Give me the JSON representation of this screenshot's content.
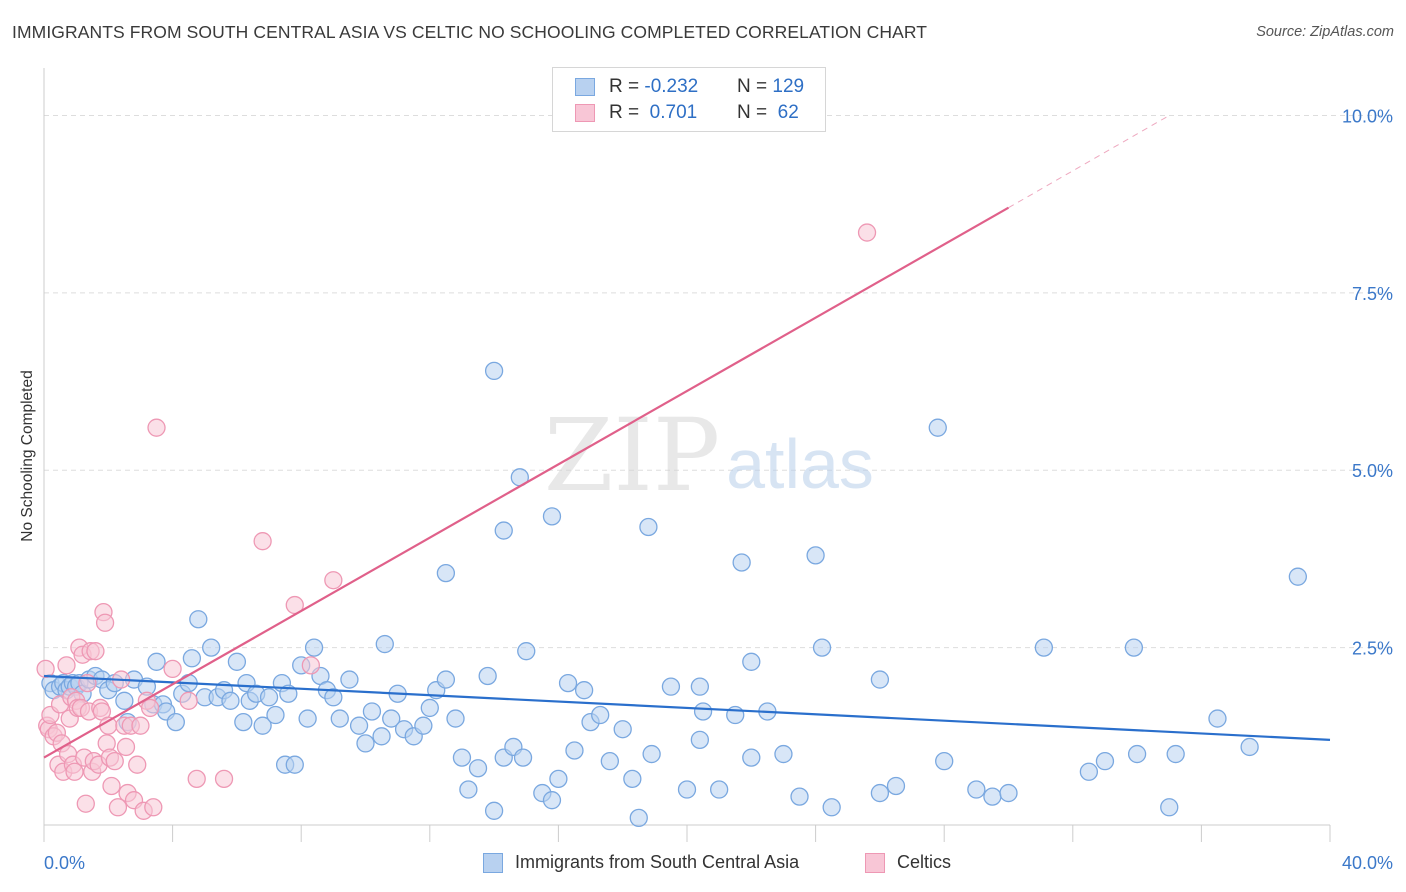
{
  "title": "IMMIGRANTS FROM SOUTH CENTRAL ASIA VS CELTIC NO SCHOOLING COMPLETED CORRELATION CHART",
  "source": "Source: ZipAtlas.com",
  "watermark": {
    "zip": "ZIP",
    "atlas": "atlas"
  },
  "colors": {
    "blue_fill": "#b8d1f0",
    "blue_stroke": "#7aa8e0",
    "blue_line": "#2a6fcc",
    "pink_fill": "#f8c6d6",
    "pink_stroke": "#ee98b4",
    "pink_line": "#e0608a",
    "axis_label": "#3b78c9",
    "grid": "#dddddd"
  },
  "legend": {
    "rows": [
      {
        "r_label": "R = ",
        "r_value": "-0.232",
        "n_label": "N = ",
        "n_value": "129",
        "color": "blue"
      },
      {
        "r_label": "R = ",
        "r_value": " 0.701",
        "n_label": "N = ",
        "n_value": " 62",
        "color": "pink"
      }
    ]
  },
  "bottom_legend": [
    "Immigrants from South Central Asia",
    "Celtics"
  ],
  "chart_data": {
    "type": "scatter",
    "title": "IMMIGRANTS FROM SOUTH CENTRAL ASIA VS CELTIC NO SCHOOLING COMPLETED CORRELATION CHART",
    "xlabel": "",
    "ylabel": "No Schooling Completed",
    "xlim": [
      0,
      40
    ],
    "ylim": [
      0,
      10.5
    ],
    "x_tick_labels": [
      "0.0%",
      "40.0%"
    ],
    "y_ticks": [
      2.5,
      5.0,
      7.5,
      10.0
    ],
    "y_tick_labels": [
      "2.5%",
      "5.0%",
      "7.5%",
      "10.0%"
    ],
    "grid": true,
    "legend_position": "top-center",
    "series": [
      {
        "name": "Immigrants from South Central Asia",
        "color": "#7aa8e0",
        "trend": {
          "x": [
            0,
            40
          ],
          "y": [
            2.1,
            1.2
          ]
        },
        "points": [
          [
            0.2,
            2.0
          ],
          [
            0.3,
            1.9
          ],
          [
            0.5,
            1.95
          ],
          [
            0.6,
            2.0
          ],
          [
            0.7,
            1.9
          ],
          [
            0.8,
            1.95
          ],
          [
            0.9,
            2.0
          ],
          [
            1.0,
            1.95
          ],
          [
            1.1,
            2.0
          ],
          [
            1.2,
            1.85
          ],
          [
            1.4,
            2.05
          ],
          [
            1.6,
            2.1
          ],
          [
            1.8,
            2.05
          ],
          [
            2.0,
            1.9
          ],
          [
            2.2,
            2.0
          ],
          [
            2.5,
            1.75
          ],
          [
            2.6,
            1.45
          ],
          [
            2.8,
            2.05
          ],
          [
            3.2,
            1.95
          ],
          [
            3.4,
            1.7
          ],
          [
            3.5,
            2.3
          ],
          [
            3.7,
            1.7
          ],
          [
            3.8,
            1.6
          ],
          [
            4.1,
            1.45
          ],
          [
            4.3,
            1.85
          ],
          [
            4.5,
            2.0
          ],
          [
            4.6,
            2.35
          ],
          [
            4.8,
            2.9
          ],
          [
            5.0,
            1.8
          ],
          [
            5.2,
            2.5
          ],
          [
            5.4,
            1.8
          ],
          [
            5.6,
            1.9
          ],
          [
            5.8,
            1.75
          ],
          [
            6.0,
            2.3
          ],
          [
            6.2,
            1.45
          ],
          [
            6.3,
            2.0
          ],
          [
            6.4,
            1.75
          ],
          [
            6.6,
            1.85
          ],
          [
            6.8,
            1.4
          ],
          [
            7.0,
            1.8
          ],
          [
            7.2,
            1.55
          ],
          [
            7.4,
            2.0
          ],
          [
            7.5,
            0.85
          ],
          [
            7.6,
            1.85
          ],
          [
            7.8,
            0.85
          ],
          [
            8.0,
            2.25
          ],
          [
            8.2,
            1.5
          ],
          [
            8.4,
            2.5
          ],
          [
            8.6,
            2.1
          ],
          [
            8.8,
            1.9
          ],
          [
            9.0,
            1.8
          ],
          [
            9.2,
            1.5
          ],
          [
            9.5,
            2.05
          ],
          [
            9.8,
            1.4
          ],
          [
            10.0,
            1.15
          ],
          [
            10.2,
            1.6
          ],
          [
            10.5,
            1.25
          ],
          [
            10.8,
            1.5
          ],
          [
            11.0,
            1.85
          ],
          [
            11.2,
            1.35
          ],
          [
            11.5,
            1.25
          ],
          [
            11.8,
            1.4
          ],
          [
            12.0,
            1.65
          ],
          [
            12.2,
            1.9
          ],
          [
            12.5,
            2.05
          ],
          [
            12.8,
            1.5
          ],
          [
            13.0,
            0.95
          ],
          [
            13.2,
            0.5
          ],
          [
            13.5,
            0.8
          ],
          [
            13.8,
            2.1
          ],
          [
            14.0,
            0.2
          ],
          [
            14.3,
            0.95
          ],
          [
            14.6,
            1.1
          ],
          [
            14.9,
            0.95
          ],
          [
            15.0,
            2.45
          ],
          [
            15.5,
            0.45
          ],
          [
            15.8,
            0.35
          ],
          [
            16.0,
            0.65
          ],
          [
            16.5,
            1.05
          ],
          [
            16.8,
            1.9
          ],
          [
            17.0,
            1.45
          ],
          [
            17.3,
            1.55
          ],
          [
            17.6,
            0.9
          ],
          [
            18.0,
            1.35
          ],
          [
            18.3,
            0.65
          ],
          [
            18.5,
            0.1
          ],
          [
            18.9,
            1.0
          ],
          [
            19.5,
            1.95
          ],
          [
            20.0,
            0.5
          ],
          [
            20.4,
            1.2
          ],
          [
            21.0,
            0.5
          ],
          [
            21.5,
            1.55
          ],
          [
            22.0,
            0.95
          ],
          [
            22.5,
            1.6
          ],
          [
            23.0,
            1.0
          ],
          [
            23.5,
            0.4
          ],
          [
            24.5,
            0.25
          ],
          [
            26.0,
            0.45
          ],
          [
            26.5,
            0.55
          ],
          [
            28.0,
            0.9
          ],
          [
            29.5,
            0.4
          ],
          [
            30.0,
            0.45
          ],
          [
            32.5,
            0.75
          ],
          [
            33.0,
            0.9
          ],
          [
            34.0,
            1.0
          ],
          [
            35.0,
            0.25
          ],
          [
            35.2,
            1.0
          ],
          [
            37.5,
            1.1
          ],
          [
            39.0,
            3.5
          ],
          [
            20.5,
            1.6
          ],
          [
            24.0,
            3.8
          ],
          [
            29.0,
            0.5
          ],
          [
            12.5,
            3.55
          ],
          [
            14.3,
            4.15
          ],
          [
            18.8,
            4.2
          ],
          [
            21.7,
            3.7
          ],
          [
            24.2,
            2.5
          ],
          [
            27.8,
            5.6
          ],
          [
            14.0,
            6.4
          ],
          [
            14.8,
            4.9
          ],
          [
            15.8,
            4.35
          ],
          [
            33.9,
            2.5
          ],
          [
            31.1,
            2.5
          ],
          [
            36.5,
            1.5
          ],
          [
            26.0,
            2.05
          ],
          [
            22.0,
            2.3
          ],
          [
            20.4,
            1.95
          ],
          [
            16.3,
            2.0
          ],
          [
            10.6,
            2.55
          ]
        ]
      },
      {
        "name": "Celtics",
        "color": "#ee98b4",
        "trend": {
          "x": [
            0,
            30
          ],
          "y": [
            0.95,
            8.7
          ]
        },
        "trend_dashed": {
          "x": [
            30,
            40
          ],
          "y": [
            8.7,
            11.3
          ]
        },
        "points": [
          [
            0.05,
            2.2
          ],
          [
            0.1,
            1.4
          ],
          [
            0.15,
            1.35
          ],
          [
            0.2,
            1.55
          ],
          [
            0.3,
            1.25
          ],
          [
            0.4,
            1.3
          ],
          [
            0.45,
            0.85
          ],
          [
            0.5,
            1.7
          ],
          [
            0.55,
            1.15
          ],
          [
            0.6,
            0.75
          ],
          [
            0.7,
            2.25
          ],
          [
            0.75,
            1.0
          ],
          [
            0.8,
            1.5
          ],
          [
            0.85,
            1.8
          ],
          [
            0.9,
            0.85
          ],
          [
            0.95,
            0.75
          ],
          [
            1.0,
            1.75
          ],
          [
            1.05,
            1.65
          ],
          [
            1.1,
            2.5
          ],
          [
            1.15,
            1.65
          ],
          [
            1.2,
            2.4
          ],
          [
            1.25,
            0.95
          ],
          [
            1.3,
            0.3
          ],
          [
            1.35,
            2.0
          ],
          [
            1.4,
            1.6
          ],
          [
            1.45,
            2.45
          ],
          [
            1.5,
            0.75
          ],
          [
            1.55,
            0.9
          ],
          [
            1.6,
            2.45
          ],
          [
            1.7,
            0.85
          ],
          [
            1.75,
            1.65
          ],
          [
            1.8,
            1.6
          ],
          [
            1.85,
            3.0
          ],
          [
            1.9,
            2.85
          ],
          [
            1.95,
            1.15
          ],
          [
            2.0,
            1.4
          ],
          [
            2.05,
            0.95
          ],
          [
            2.1,
            0.55
          ],
          [
            2.2,
            0.9
          ],
          [
            2.3,
            0.25
          ],
          [
            2.4,
            2.05
          ],
          [
            2.5,
            1.4
          ],
          [
            2.55,
            1.1
          ],
          [
            2.6,
            0.45
          ],
          [
            2.7,
            1.4
          ],
          [
            2.8,
            0.35
          ],
          [
            2.9,
            0.85
          ],
          [
            3.0,
            1.4
          ],
          [
            3.1,
            0.2
          ],
          [
            3.2,
            1.75
          ],
          [
            3.3,
            1.65
          ],
          [
            3.5,
            5.6
          ],
          [
            4.0,
            2.2
          ],
          [
            4.5,
            1.75
          ],
          [
            4.75,
            0.65
          ],
          [
            5.6,
            0.65
          ],
          [
            6.8,
            4.0
          ],
          [
            7.8,
            3.1
          ],
          [
            8.3,
            2.25
          ],
          [
            9.0,
            3.45
          ],
          [
            25.6,
            8.35
          ],
          [
            3.4,
            0.25
          ]
        ]
      }
    ]
  }
}
